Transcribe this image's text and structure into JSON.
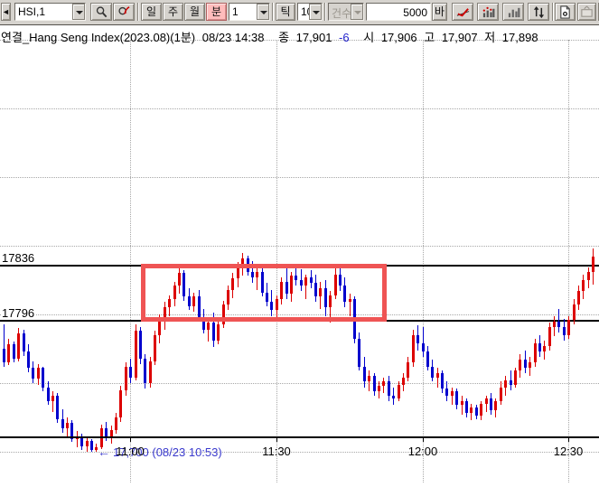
{
  "toolbar": {
    "scroll_left": "◄",
    "symbol_combo": "HSI,1",
    "period_buttons": [
      "일",
      "주",
      "월",
      "분"
    ],
    "active_period": "분",
    "interval_combo": "1",
    "tick_label": "틱",
    "tick_combo": "10",
    "count_label": "건수",
    "count_value": "5000",
    "bar_label": "바",
    "icon_names": [
      "search-icon",
      "search-return-icon",
      "line-chart-icon",
      "volume-signal-icon",
      "volume-icon",
      "sort-updown-icon",
      "new-document-icon",
      "tv-icon",
      "clipped-chart-icon"
    ]
  },
  "info_bar": {
    "title": "연결_Hang Seng Index(2023.08)(1분)",
    "datetime": "08/23 14:38",
    "close_label": "종",
    "close": "17,901",
    "change": "-6",
    "open_label": "시",
    "open": "17,906",
    "high_label": "고",
    "high": "17,907",
    "low_label": "저",
    "low": "17,898"
  },
  "chart_data": {
    "type": "candlestick",
    "title": "Hang Seng Index (2023.08) 1-minute",
    "colors": {
      "up": "#dc0000",
      "down": "#0000cd",
      "grid": "#a8a8a8",
      "annotation_box": "#ef5454",
      "annotation_text": "#3a3acd"
    },
    "y_gridlines": [
      18000,
      17950,
      17900,
      17850,
      17800,
      17750,
      17700
    ],
    "x_ticks": [
      "11:00",
      "11:30",
      "12:00",
      "12:30"
    ],
    "hlines": [
      {
        "price": 17836,
        "label": "17836"
      },
      {
        "price": 17796,
        "label": "17796"
      }
    ],
    "box_annotation": {
      "from": "11:03",
      "to": "11:52",
      "top": 17837,
      "bottom": 17796
    },
    "low_annotation": {
      "at": "10:53",
      "price": 17700,
      "arrow": "←",
      "text": "17,700 (08/23 10:53)"
    },
    "candles": [
      [
        "10:34",
        17775,
        17793,
        17762,
        17765
      ],
      [
        "10:35",
        17765,
        17782,
        17763,
        17778
      ],
      [
        "10:36",
        17778,
        17780,
        17765,
        17768
      ],
      [
        "10:37",
        17768,
        17790,
        17766,
        17786
      ],
      [
        "10:38",
        17786,
        17789,
        17770,
        17773
      ],
      [
        "10:39",
        17773,
        17778,
        17758,
        17761
      ],
      [
        "10:40",
        17761,
        17766,
        17750,
        17753
      ],
      [
        "10:41",
        17753,
        17764,
        17749,
        17761
      ],
      [
        "10:42",
        17761,
        17762,
        17744,
        17747
      ],
      [
        "10:43",
        17747,
        17751,
        17734,
        17737
      ],
      [
        "10:44",
        17737,
        17744,
        17729,
        17741
      ],
      [
        "10:45",
        17741,
        17743,
        17721,
        17724
      ],
      [
        "10:46",
        17724,
        17731,
        17714,
        17717
      ],
      [
        "10:47",
        17717,
        17725,
        17711,
        17721
      ],
      [
        "10:48",
        17721,
        17723,
        17707,
        17709
      ],
      [
        "10:49",
        17709,
        17715,
        17703,
        17711
      ],
      [
        "10:50",
        17711,
        17713,
        17701,
        17704
      ],
      [
        "10:51",
        17704,
        17711,
        17700,
        17708
      ],
      [
        "10:52",
        17708,
        17709,
        17700,
        17701
      ],
      [
        "10:53",
        17701,
        17706,
        17700,
        17703
      ],
      [
        "10:54",
        17703,
        17720,
        17702,
        17717
      ],
      [
        "10:55",
        17717,
        17722,
        17708,
        17711
      ],
      [
        "10:56",
        17711,
        17719,
        17706,
        17716
      ],
      [
        "10:57",
        17716,
        17728,
        17713,
        17725
      ],
      [
        "10:58",
        17725,
        17748,
        17722,
        17745
      ],
      [
        "10:59",
        17745,
        17765,
        17741,
        17762
      ],
      [
        "11:00",
        17762,
        17768,
        17750,
        17754
      ],
      [
        "11:01",
        17754,
        17793,
        17752,
        17788
      ],
      [
        "11:02",
        17788,
        17791,
        17764,
        17768
      ],
      [
        "11:03",
        17768,
        17771,
        17746,
        17750
      ],
      [
        "11:04",
        17750,
        17769,
        17747,
        17766
      ],
      [
        "11:05",
        17766,
        17788,
        17763,
        17785
      ],
      [
        "11:06",
        17785,
        17800,
        17779,
        17796
      ],
      [
        "11:07",
        17796,
        17809,
        17789,
        17805
      ],
      [
        "11:08",
        17805,
        17814,
        17799,
        17811
      ],
      [
        "11:09",
        17811,
        17824,
        17806,
        17821
      ],
      [
        "11:10",
        17821,
        17835,
        17815,
        17830
      ],
      [
        "11:11",
        17830,
        17832,
        17810,
        17813
      ],
      [
        "11:12",
        17813,
        17819,
        17803,
        17806
      ],
      [
        "11:13",
        17806,
        17816,
        17802,
        17813
      ],
      [
        "11:14",
        17813,
        17818,
        17795,
        17798
      ],
      [
        "11:15",
        17798,
        17804,
        17786,
        17789
      ],
      [
        "11:16",
        17789,
        17797,
        17780,
        17794
      ],
      [
        "11:17",
        17794,
        17801,
        17776,
        17781
      ],
      [
        "11:18",
        17781,
        17796,
        17778,
        17793
      ],
      [
        "11:19",
        17793,
        17810,
        17790,
        17807
      ],
      [
        "11:20",
        17807,
        17821,
        17803,
        17818
      ],
      [
        "11:21",
        17818,
        17830,
        17812,
        17826
      ],
      [
        "11:22",
        17826,
        17838,
        17820,
        17834
      ],
      [
        "11:23",
        17834,
        17845,
        17828,
        17841
      ],
      [
        "11:24",
        17841,
        17843,
        17828,
        17831
      ],
      [
        "11:25",
        17831,
        17839,
        17823,
        17827
      ],
      [
        "11:26",
        17827,
        17835,
        17818,
        17831
      ],
      [
        "11:27",
        17831,
        17834,
        17813,
        17816
      ],
      [
        "11:28",
        17816,
        17823,
        17806,
        17809
      ],
      [
        "11:29",
        17809,
        17818,
        17799,
        17803
      ],
      [
        "11:30",
        17803,
        17814,
        17797,
        17811
      ],
      [
        "11:31",
        17811,
        17827,
        17807,
        17824
      ],
      [
        "11:32",
        17824,
        17834,
        17811,
        17815
      ],
      [
        "11:33",
        17815,
        17831,
        17809,
        17828
      ],
      [
        "11:34",
        17828,
        17836,
        17821,
        17825
      ],
      [
        "11:35",
        17825,
        17833,
        17817,
        17821
      ],
      [
        "11:36",
        17821,
        17829,
        17811,
        17827
      ],
      [
        "11:37",
        17827,
        17832,
        17819,
        17823
      ],
      [
        "11:38",
        17823,
        17829,
        17809,
        17813
      ],
      [
        "11:39",
        17813,
        17824,
        17804,
        17819
      ],
      [
        "11:40",
        17819,
        17825,
        17799,
        17805
      ],
      [
        "11:41",
        17805,
        17817,
        17794,
        17814
      ],
      [
        "11:42",
        17814,
        17834,
        17811,
        17829
      ],
      [
        "11:43",
        17829,
        17835,
        17817,
        17821
      ],
      [
        "11:44",
        17821,
        17827,
        17805,
        17809
      ],
      [
        "11:45",
        17809,
        17815,
        17799,
        17811
      ],
      [
        "11:46",
        17811,
        17813,
        17779,
        17782
      ],
      [
        "11:47",
        17782,
        17787,
        17759,
        17762
      ],
      [
        "11:48",
        17762,
        17769,
        17747,
        17751
      ],
      [
        "11:49",
        17751,
        17759,
        17744,
        17755
      ],
      [
        "11:50",
        17755,
        17757,
        17741,
        17744
      ],
      [
        "11:51",
        17744,
        17751,
        17739,
        17748
      ],
      [
        "11:52",
        17748,
        17754,
        17743,
        17751
      ],
      [
        "11:53",
        17751,
        17755,
        17737,
        17741
      ],
      [
        "11:54",
        17741,
        17747,
        17734,
        17739
      ],
      [
        "11:55",
        17739,
        17751,
        17737,
        17749
      ],
      [
        "11:56",
        17749,
        17757,
        17744,
        17754
      ],
      [
        "11:57",
        17754,
        17769,
        17751,
        17765
      ],
      [
        "11:58",
        17765,
        17789,
        17762,
        17785
      ],
      [
        "11:59",
        17785,
        17792,
        17774,
        17779
      ],
      [
        "12:00",
        17779,
        17791,
        17769,
        17773
      ],
      [
        "12:01",
        17773,
        17777,
        17759,
        17762
      ],
      [
        "12:02",
        17762,
        17767,
        17751,
        17754
      ],
      [
        "12:03",
        17754,
        17761,
        17747,
        17757
      ],
      [
        "12:04",
        17757,
        17759,
        17743,
        17746
      ],
      [
        "12:05",
        17746,
        17751,
        17737,
        17741
      ],
      [
        "12:06",
        17741,
        17747,
        17734,
        17744
      ],
      [
        "12:07",
        17744,
        17746,
        17731,
        17734
      ],
      [
        "12:08",
        17734,
        17741,
        17727,
        17737
      ],
      [
        "12:09",
        17737,
        17739,
        17725,
        17728
      ],
      [
        "12:10",
        17728,
        17735,
        17723,
        17732
      ],
      [
        "12:11",
        17732,
        17734,
        17724,
        17726
      ],
      [
        "12:12",
        17726,
        17737,
        17723,
        17735
      ],
      [
        "12:13",
        17735,
        17741,
        17729,
        17739
      ],
      [
        "12:14",
        17739,
        17743,
        17727,
        17730
      ],
      [
        "12:15",
        17730,
        17739,
        17725,
        17737
      ],
      [
        "12:16",
        17737,
        17751,
        17734,
        17747
      ],
      [
        "12:17",
        17747,
        17755,
        17741,
        17752
      ],
      [
        "12:18",
        17752,
        17759,
        17745,
        17749
      ],
      [
        "12:19",
        17749,
        17761,
        17747,
        17759
      ],
      [
        "12:20",
        17759,
        17771,
        17754,
        17767
      ],
      [
        "12:21",
        17767,
        17774,
        17757,
        17761
      ],
      [
        "12:22",
        17761,
        17769,
        17755,
        17765
      ],
      [
        "12:23",
        17765,
        17782,
        17762,
        17779
      ],
      [
        "12:24",
        17779,
        17785,
        17769,
        17773
      ],
      [
        "12:25",
        17773,
        17781,
        17767,
        17777
      ],
      [
        "12:26",
        17777,
        17794,
        17774,
        17791
      ],
      [
        "12:27",
        17791,
        17799,
        17784,
        17795
      ],
      [
        "12:28",
        17795,
        17804,
        17787,
        17791
      ],
      [
        "12:29",
        17791,
        17797,
        17781,
        17785
      ],
      [
        "12:30",
        17785,
        17799,
        17782,
        17796
      ],
      [
        "12:31",
        17796,
        17811,
        17793,
        17807
      ],
      [
        "12:32",
        17807,
        17821,
        17803,
        17817
      ],
      [
        "12:33",
        17817,
        17829,
        17811,
        17825
      ],
      [
        "12:34",
        17825,
        17834,
        17819,
        17831
      ],
      [
        "12:35",
        17831,
        17848,
        17822,
        17842
      ]
    ]
  }
}
